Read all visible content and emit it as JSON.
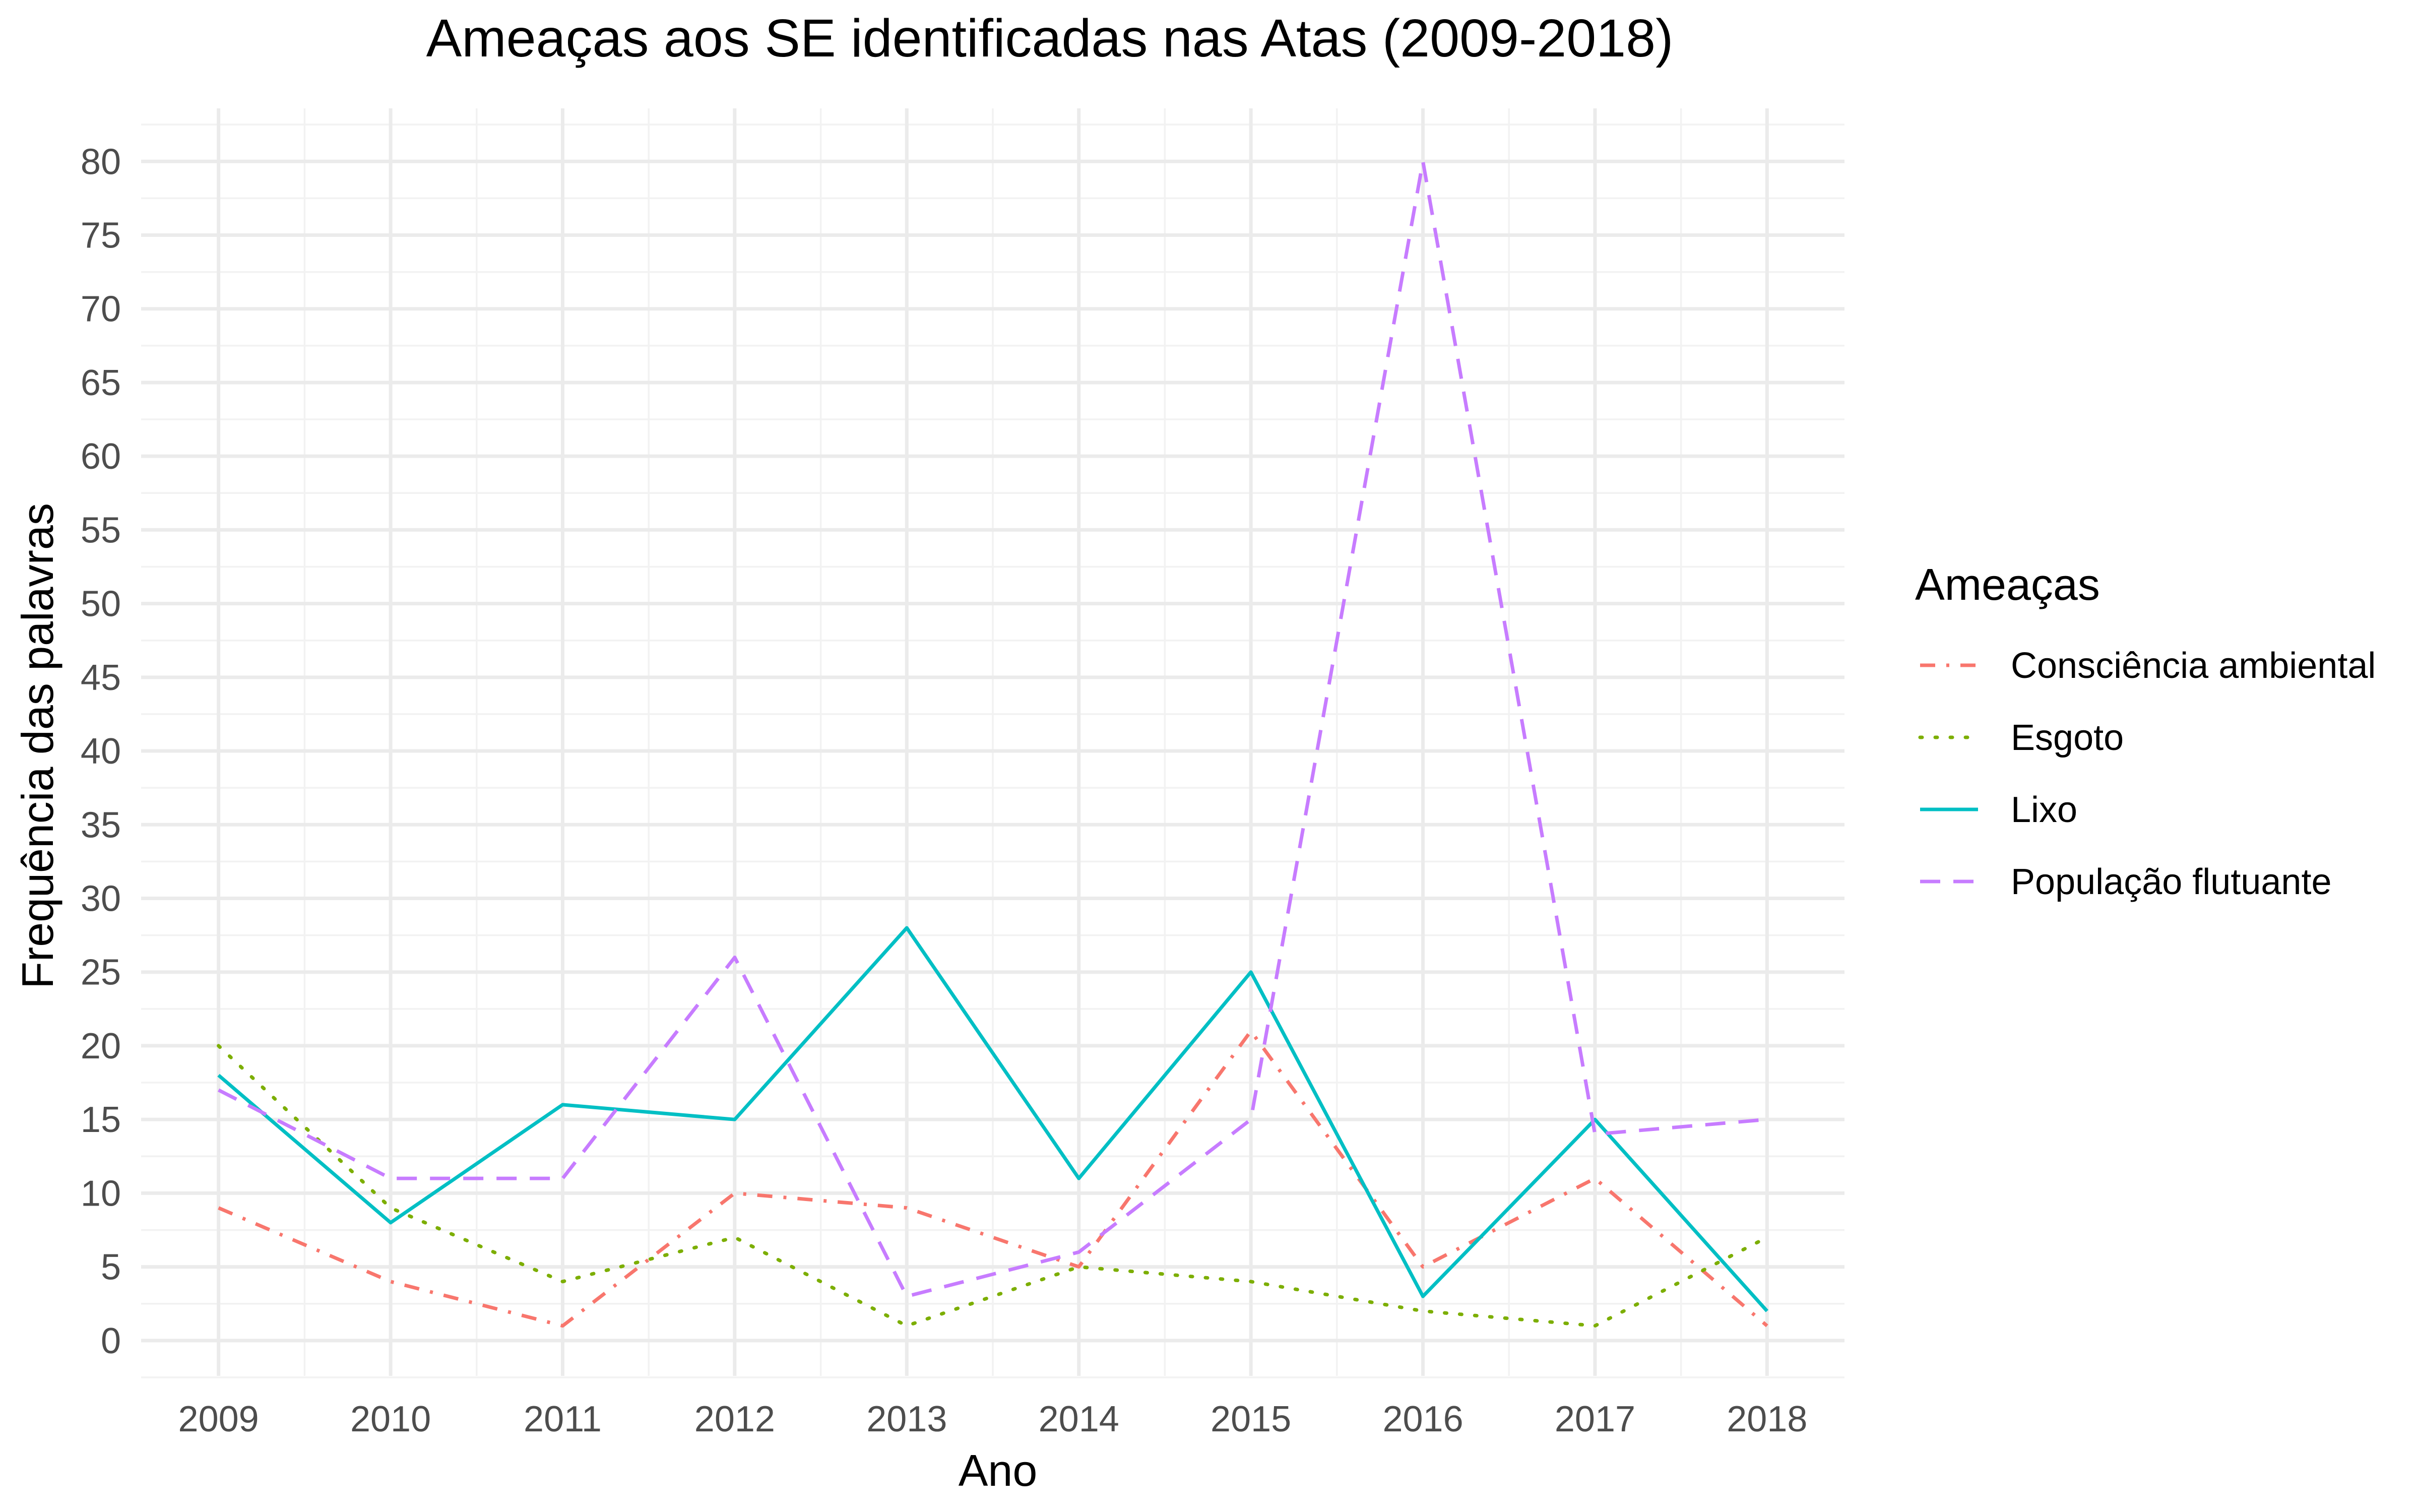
{
  "chart_data": {
    "type": "line",
    "title": "Ameaças aos SE identificadas nas Atas (2009-2018)",
    "xlabel": "Ano",
    "ylabel": "Frequência das palavras",
    "x": [
      2009,
      2010,
      2011,
      2012,
      2013,
      2014,
      2015,
      2016,
      2017,
      2018
    ],
    "xlim": [
      2008.55,
      2018.45
    ],
    "ylim": [
      -2.4,
      83.6
    ],
    "yticks": [
      0,
      5,
      10,
      15,
      20,
      25,
      30,
      35,
      40,
      45,
      50,
      55,
      60,
      65,
      70,
      75,
      80
    ],
    "grid": true,
    "legend": {
      "title": "Ameaças",
      "position": "right"
    },
    "series": [
      {
        "name": "Consciência ambiental",
        "color": "#F8766D",
        "dash": "dotdash",
        "values": [
          9,
          4,
          1,
          10,
          9,
          5,
          21,
          5,
          11,
          1
        ]
      },
      {
        "name": "Esgoto",
        "color": "#7CAE00",
        "dash": "dotted",
        "values": [
          20,
          9,
          4,
          7,
          1,
          5,
          4,
          2,
          1,
          7
        ]
      },
      {
        "name": "Lixo",
        "color": "#00BFC4",
        "dash": "solid",
        "values": [
          18,
          8,
          16,
          15,
          28,
          11,
          25,
          3,
          15,
          2
        ]
      },
      {
        "name": "População flutuante",
        "color": "#C77CFF",
        "dash": "dashed",
        "values": [
          17,
          11,
          11,
          26,
          3,
          6,
          15,
          80,
          14,
          15
        ]
      }
    ]
  }
}
